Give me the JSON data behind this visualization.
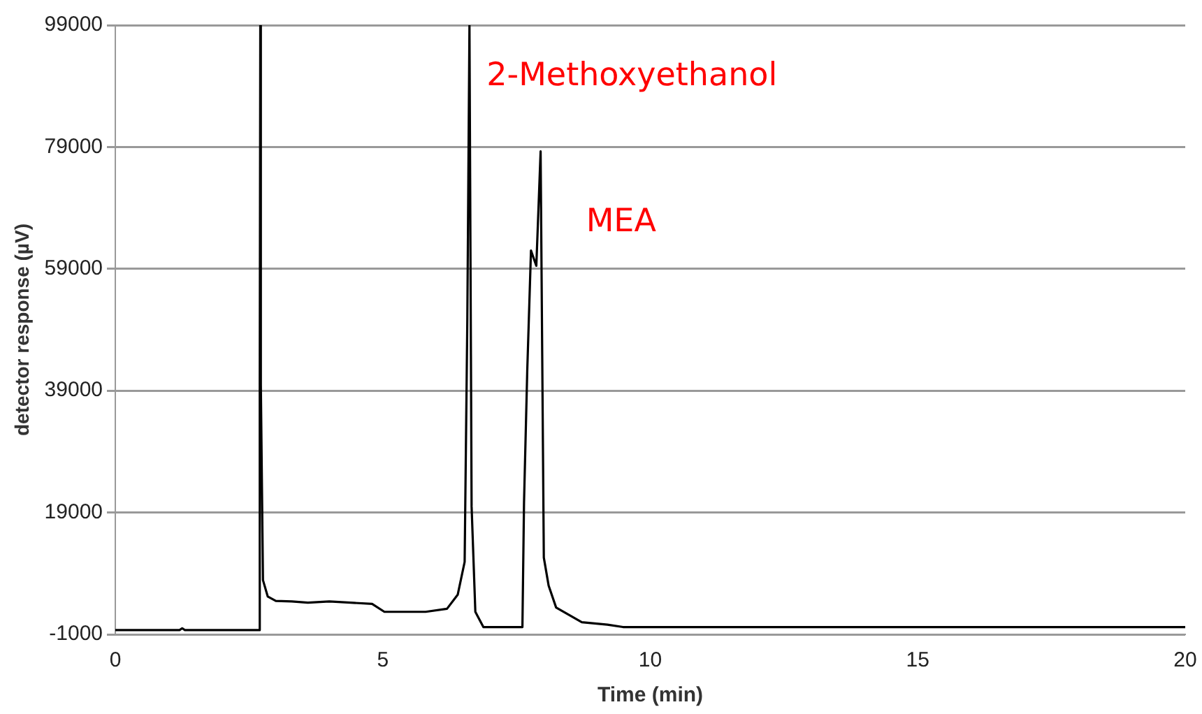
{
  "chart_data": {
    "type": "line",
    "xlabel": "Time (min)",
    "ylabel": "detector response (µV)",
    "series": [
      {
        "color": "#000000",
        "x": [
          0,
          1.2,
          1.25,
          1.3,
          2.69,
          2.7,
          2.71,
          2.72,
          2.76,
          2.85,
          3.0,
          3.3,
          3.6,
          4.0,
          4.4,
          4.8,
          5.03,
          5.3,
          5.8,
          6.2,
          6.4,
          6.53,
          6.58,
          6.62,
          6.66,
          6.73,
          6.88,
          7.2,
          7.61,
          7.64,
          7.7,
          7.77,
          7.87,
          7.95,
          8.01,
          8.1,
          8.24,
          8.72,
          9.2,
          9.49,
          12,
          15,
          20
        ],
        "values": [
          -300,
          -300,
          0,
          -300,
          -300,
          40000,
          99000,
          40000,
          7900,
          5200,
          4500,
          4400,
          4200,
          4400,
          4200,
          4000,
          2700,
          2700,
          2700,
          3200,
          5500,
          10900,
          50600,
          99000,
          20000,
          2700,
          200,
          200,
          200,
          20700,
          42200,
          62000,
          59500,
          78300,
          11600,
          7000,
          3400,
          1000,
          600,
          200,
          200,
          200,
          200
        ]
      }
    ],
    "xlim": [
      0,
      20
    ],
    "xticks": [
      0,
      5,
      10,
      15,
      20
    ],
    "ylim": [
      -1000,
      99000
    ],
    "yticks": [
      -1000,
      19000,
      39000,
      59000,
      79000,
      99000
    ],
    "grid": "y",
    "marker": "none",
    "line_style": "solid",
    "annotations": [
      "2-Methoxyethanol",
      "MEA"
    ]
  }
}
